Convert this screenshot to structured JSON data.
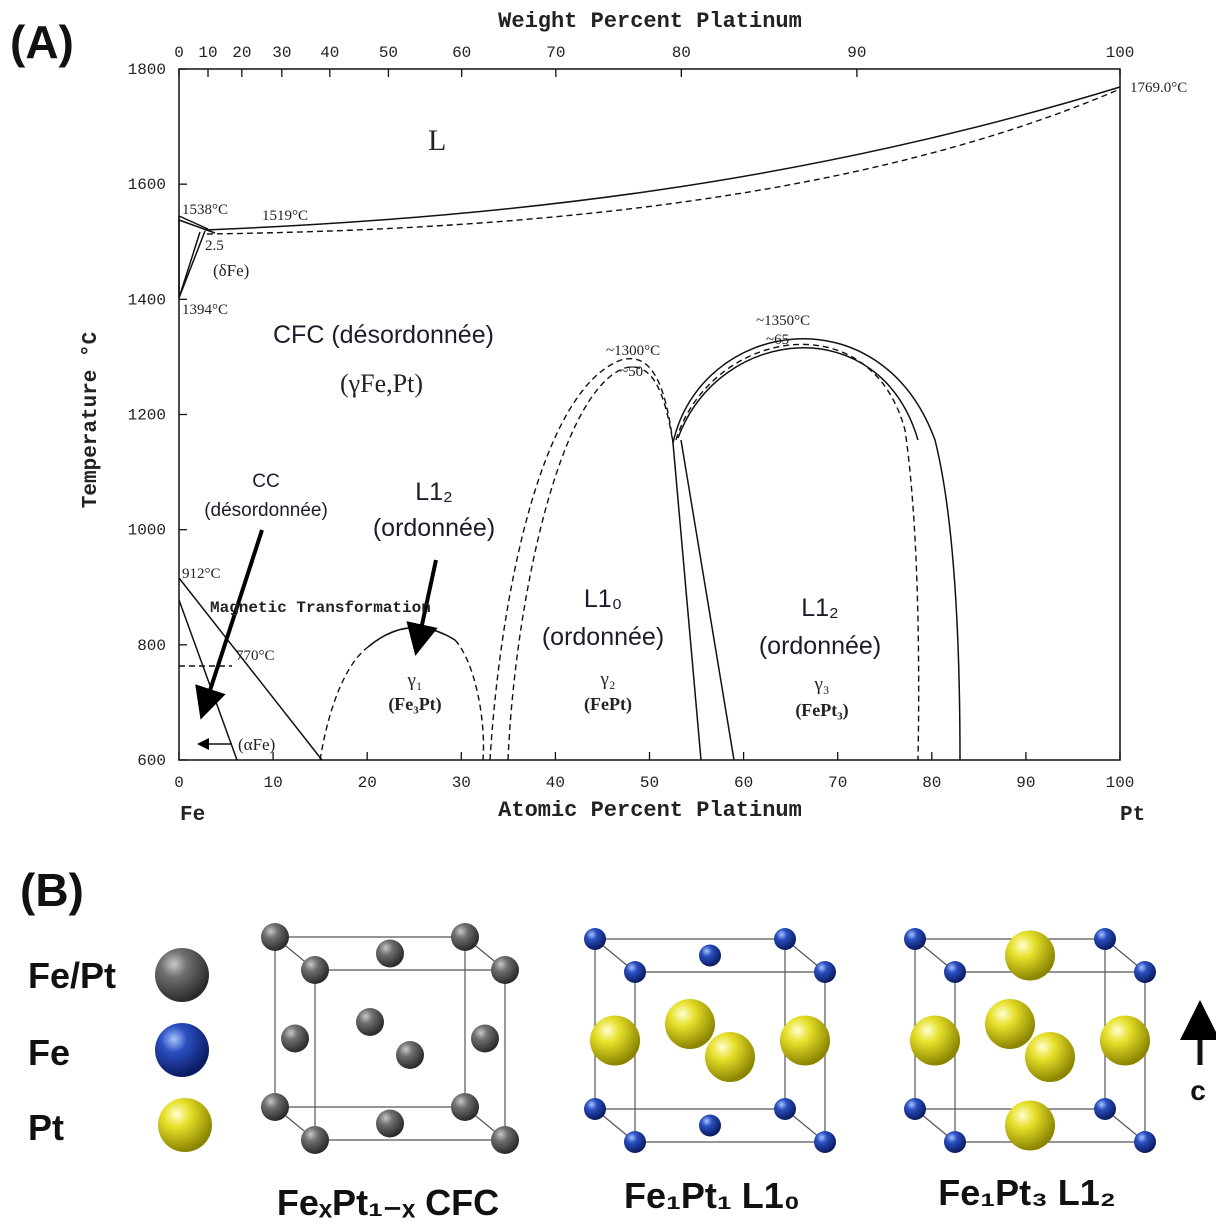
{
  "panel_a": {
    "label": "(A)",
    "top_axis_title": "Weight Percent Platinum",
    "top_ticks": [
      0,
      10,
      20,
      30,
      40,
      50,
      60,
      70,
      80,
      90,
      100
    ],
    "y_axis_title": "Temperature °C",
    "y_ticks": [
      600,
      800,
      1000,
      1200,
      1400,
      1600,
      1800
    ],
    "x_ticks": [
      0,
      10,
      20,
      30,
      40,
      50,
      60,
      70,
      80,
      90,
      100
    ],
    "x_axis_title": "Atomic Percent Platinum",
    "left_end": "Fe",
    "right_end": "Pt",
    "annotations": {
      "liquid": "L",
      "t1538": "1538°C",
      "t1519": "1519°C",
      "v25": "2.5",
      "delta_fe": "(δFe)",
      "t1394": "1394°C",
      "cfc": "CFC (désordonnée)",
      "gamma_fept": "(γFe,Pt)",
      "t1300": "~1300°C",
      "v50": "~50",
      "t1350": "~1350°C",
      "v65": "~65",
      "t1769": "1769.0°C",
      "cc": "CC",
      "cc_dis": "(désordonnée)",
      "l12_a": "L1₂",
      "ord_a": "(ordonnée)",
      "t912": "912°C",
      "magnetic": "Magnetic Transformation",
      "t770": "770°C",
      "gamma1": "γ₁",
      "fe3pt": "(Fe₃Pt)",
      "l10": "L1₀",
      "ord_b": "(ordonnée)",
      "gamma2": "γ₂",
      "fept": "(FePt)",
      "l12_b": "L1₂",
      "ord_c": "(ordonnée)",
      "gamma3": "γ₃",
      "fept3": "(FePt₃)",
      "alpha_fe": "(αFe)"
    }
  },
  "panel_b": {
    "label": "(B)",
    "legend": [
      "Fe/Pt",
      "Fe",
      "Pt"
    ],
    "captions": [
      "FeₓPt₁₋ₓ CFC",
      "Fe₁Pt₁ L1₀",
      "Fe₁Pt₃ L1₂"
    ],
    "axis_label": "c"
  }
}
